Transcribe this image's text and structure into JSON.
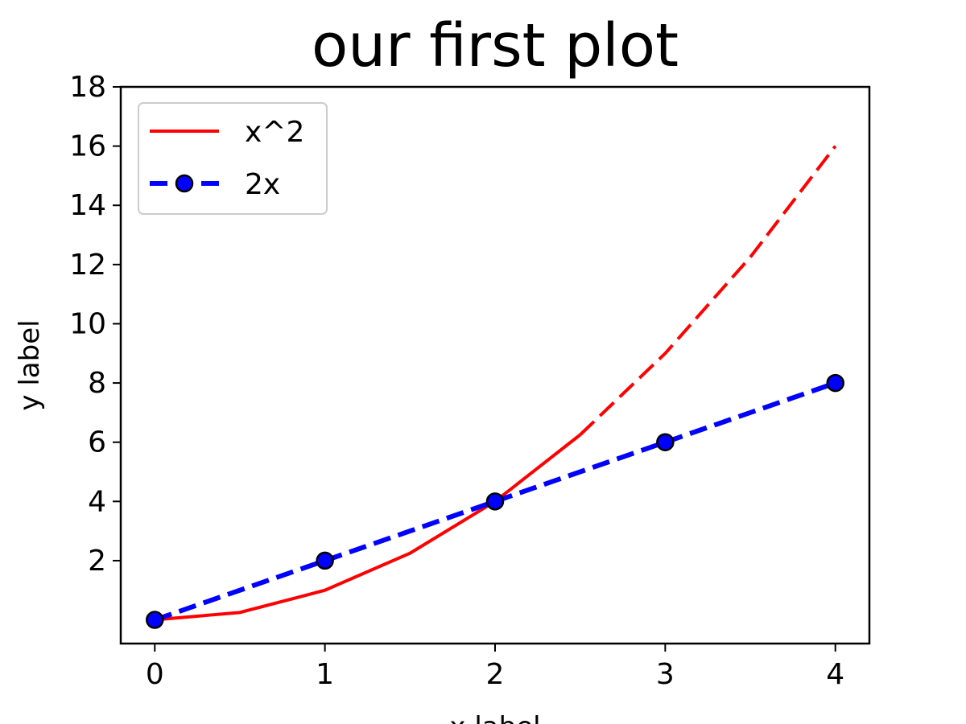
{
  "chart_data": {
    "type": "line",
    "title": "our first plot",
    "xlabel": "x label",
    "ylabel": "y label",
    "xlim": [
      -0.2,
      4.2
    ],
    "ylim": [
      -0.8,
      18
    ],
    "xticks": [
      0,
      1,
      2,
      3,
      4
    ],
    "yticks": [
      2,
      4,
      6,
      8,
      10,
      12,
      14,
      16,
      18
    ],
    "grid": false,
    "legend": "upper-left",
    "series": [
      {
        "name": "x^2",
        "color": "#ff0000",
        "style": "solid-then-dashed",
        "x": [
          0,
          0.5,
          1,
          1.5,
          2,
          2.5,
          3,
          3.5,
          4
        ],
        "y": [
          0,
          0.25,
          1,
          2.25,
          4,
          6.25,
          9,
          12.25,
          16
        ]
      },
      {
        "name": "2x",
        "color": "#0000ff",
        "style": "dashed",
        "marker": "circle",
        "x": [
          0,
          1,
          2,
          3,
          4
        ],
        "y": [
          0,
          2,
          4,
          6,
          8
        ]
      }
    ]
  }
}
